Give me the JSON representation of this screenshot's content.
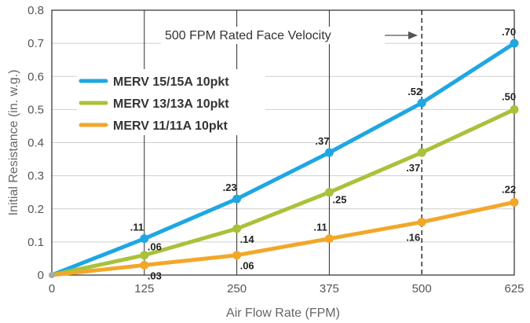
{
  "chart_data": {
    "type": "line",
    "title": "",
    "xlabel": "Air Flow Rate (FPM)",
    "ylabel": "Initial Resistance (in. w.g.)",
    "xlim": [
      0,
      625
    ],
    "ylim": [
      0,
      0.8
    ],
    "x_ticks": [
      "0",
      "125",
      "250",
      "375",
      "500",
      "625"
    ],
    "y_ticks": [
      "0",
      "0.1",
      "0.2",
      "0.3",
      "0.4",
      "0.5",
      "0.6",
      "0.7",
      "0.8"
    ],
    "grid": true,
    "legend_position": "upper-left",
    "series": [
      {
        "name": "MERV 15/15A 10pkt",
        "color": "#1ea7e1",
        "x": [
          0,
          125,
          250,
          375,
          500,
          625
        ],
        "values": [
          0,
          0.11,
          0.23,
          0.37,
          0.52,
          0.7
        ],
        "labels": [
          ".11",
          ".23",
          ".37",
          ".52",
          ".70"
        ]
      },
      {
        "name": "MERV 13/13A 10pkt",
        "color": "#a8c23a",
        "x": [
          0,
          125,
          250,
          375,
          500,
          625
        ],
        "values": [
          0,
          0.06,
          0.14,
          0.25,
          0.37,
          0.5
        ],
        "labels": [
          ".06",
          ".14",
          ".25",
          ".37",
          ".50"
        ]
      },
      {
        "name": "MERV 11/11A 10pkt",
        "color": "#f2a72a",
        "x": [
          0,
          125,
          250,
          375,
          500,
          625
        ],
        "values": [
          0,
          0.03,
          0.06,
          0.11,
          0.16,
          0.22
        ],
        "labels": [
          ".03",
          ".06",
          ".11",
          ".16",
          ".22"
        ]
      }
    ],
    "annotation": {
      "text": "500 FPM Rated Face Velocity",
      "x": 500,
      "line_style": "dashed"
    }
  }
}
